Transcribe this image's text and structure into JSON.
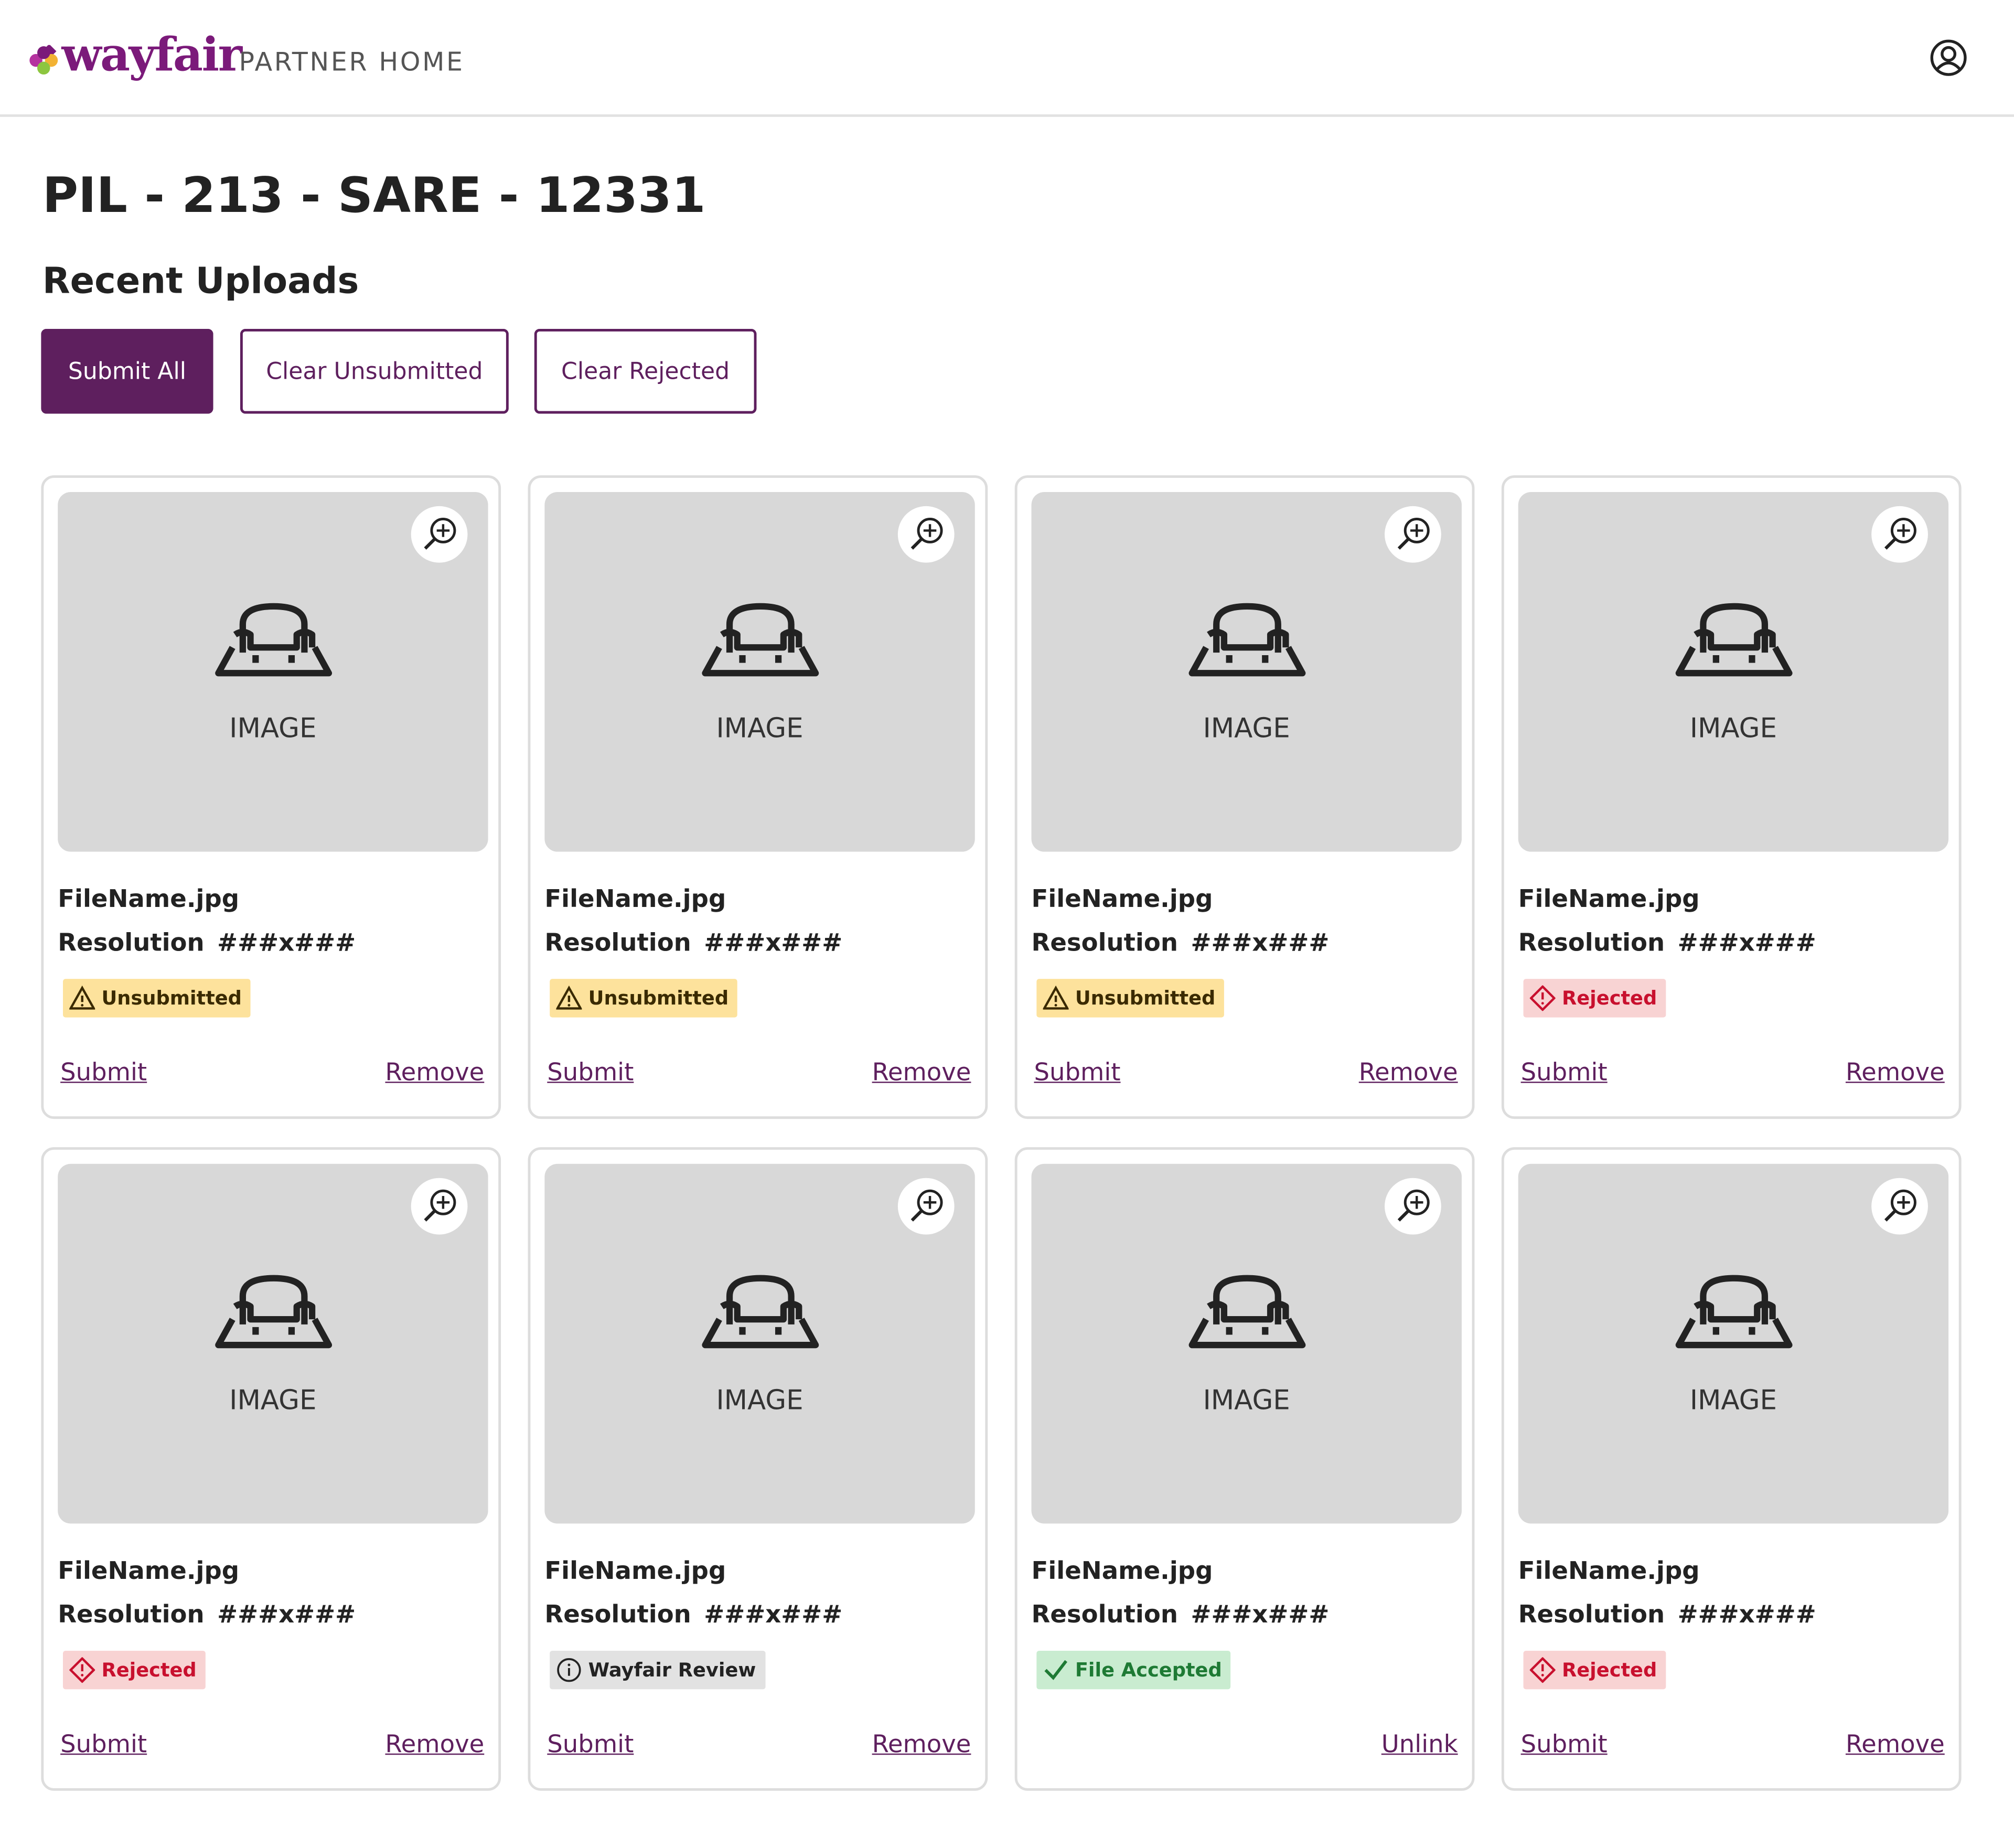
{
  "header": {
    "logo": "wayfair",
    "subtitle": "PARTNER HOME"
  },
  "title": "PIL - 213 - SARE - 12331",
  "section": "Recent Uploads",
  "buttons": [
    "Submit All",
    "Clear Unsubmitted",
    "Clear Rejected"
  ],
  "cards": [
    {
      "image": "IMAGE",
      "filename": "FileName.jpg",
      "resolution_label": "Resolution",
      "resolution": "###x###",
      "status": {
        "label": "Unsubmitted",
        "icon": "warning",
        "color": "#fde29c",
        "text_color": "#3a2a00"
      },
      "actions": [
        "Submit",
        "Remove"
      ]
    },
    {
      "image": "IMAGE",
      "filename": "FileName.jpg",
      "resolution_label": "Resolution",
      "resolution": "###x###",
      "status": {
        "label": "Unsubmitted",
        "icon": "warning",
        "color": "#fde29c",
        "text_color": "#3a2a00"
      },
      "actions": [
        "Submit",
        "Remove"
      ]
    },
    {
      "image": "IMAGE",
      "filename": "FileName.jpg",
      "resolution_label": "Resolution",
      "resolution": "###x###",
      "status": {
        "label": "Unsubmitted",
        "icon": "warning",
        "color": "#fde29c",
        "text_color": "#3a2a00"
      },
      "actions": [
        "Submit",
        "Remove"
      ]
    },
    {
      "image": "IMAGE",
      "filename": "FileName.jpg",
      "resolution_label": "Resolution",
      "resolution": "###x###",
      "status": {
        "label": "Rejected",
        "icon": "error",
        "color": "#f8d3d3",
        "text_color": "#c8102e"
      },
      "actions": [
        "Submit",
        "Remove"
      ]
    },
    {
      "image": "IMAGE",
      "filename": "FileName.jpg",
      "resolution_label": "Resolution",
      "resolution": "###x###",
      "status": {
        "label": "Rejected",
        "icon": "error",
        "color": "#f8d3d3",
        "text_color": "#c8102e"
      },
      "actions": [
        "Submit",
        "Remove"
      ]
    },
    {
      "image": "IMAGE",
      "filename": "FileName.jpg",
      "resolution_label": "Resolution",
      "resolution": "###x###",
      "status": {
        "label": "Wayfair Review",
        "icon": "info",
        "color": "#e2e2e2",
        "text_color": "#222222"
      },
      "actions": [
        "Submit",
        "Remove"
      ]
    },
    {
      "image": "IMAGE",
      "filename": "FileName.jpg",
      "resolution_label": "Resolution",
      "resolution": "###x###",
      "status": {
        "label": "File Accepted",
        "icon": "check",
        "color": "#c9ecd0",
        "text_color": "#1e7a34"
      },
      "actions": [
        "Unlink"
      ]
    },
    {
      "image": "IMAGE",
      "filename": "FileName.jpg",
      "resolution_label": "Resolution",
      "resolution": "###x###",
      "status": {
        "label": "Rejected",
        "icon": "error",
        "color": "#f8d3d3",
        "text_color": "#c8102e"
      },
      "actions": [
        "Submit",
        "Remove"
      ]
    }
  ]
}
